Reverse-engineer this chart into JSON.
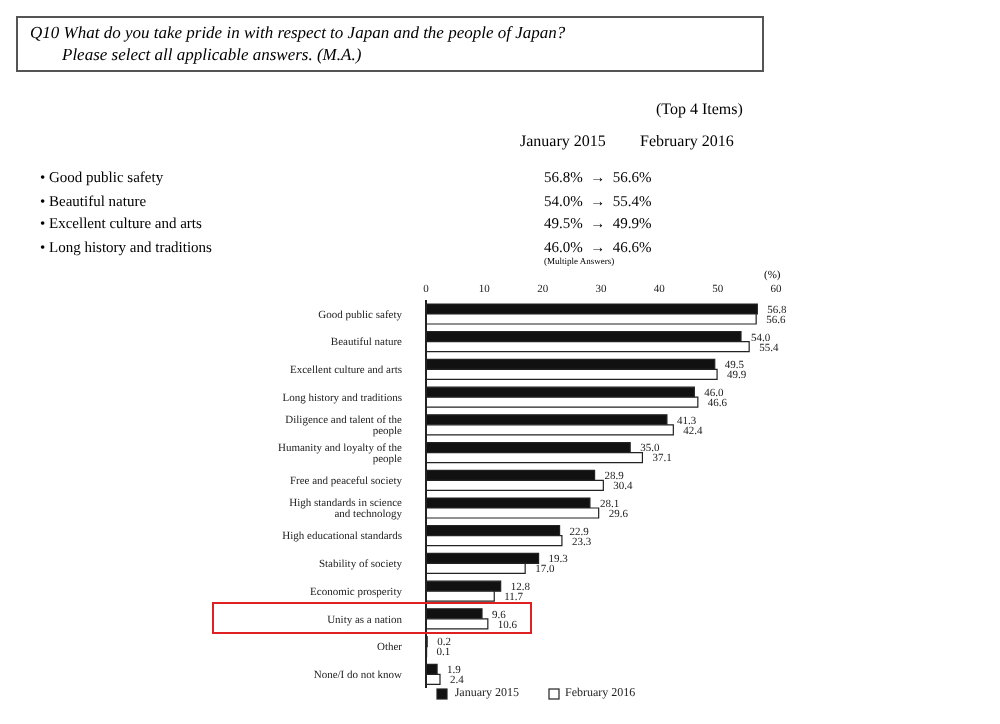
{
  "chart_data": {
    "type": "bar",
    "orientation": "horizontal",
    "title": "Q10 What do you take pride in with respect to Japan and the people of Japan?\nPlease select all applicable answers. (M.A.)",
    "xlabel": "(%)",
    "categories": [
      "Good public safety",
      "Beautiful nature",
      "Excellent culture and arts",
      "Long history and traditions",
      "Diligence and talent of the people",
      "Humanity and loyalty of the people",
      "Free and peaceful society",
      "High standards in science and technology",
      "High educational standards",
      "Stability of society",
      "Economic prosperity",
      "Unity as a nation",
      "Other",
      "None/I do not know"
    ],
    "series": [
      {
        "name": "January 2015",
        "color": "#111111",
        "values": [
          56.8,
          54.0,
          49.5,
          46.0,
          41.3,
          35.0,
          28.9,
          28.1,
          22.9,
          19.3,
          12.8,
          9.6,
          0.2,
          1.9
        ],
        "value_labels": [
          "56.8",
          "54.0",
          "49.5",
          "46.0",
          "41.3",
          "35.0",
          "28.9",
          "28.1",
          "22.9",
          "19.3",
          "12.8",
          "9.6",
          "0.2",
          "1.9"
        ]
      },
      {
        "name": "February 2016",
        "color": "#ffffff",
        "values": [
          56.6,
          55.4,
          49.9,
          46.6,
          42.4,
          37.1,
          30.4,
          29.6,
          23.3,
          17.0,
          11.7,
          10.6,
          0.1,
          2.4
        ],
        "value_labels": [
          "56.6",
          "55.4",
          "49.9",
          "46.6",
          "42.4",
          "37.1",
          "30.4",
          "29.6",
          "23.3",
          "17.0",
          "11.7",
          "10.6",
          "0.1",
          "2.4"
        ]
      }
    ],
    "xlim": [
      0,
      60
    ],
    "xticks": [
      0,
      10,
      20,
      30,
      40,
      50,
      60
    ],
    "legend": "bottom",
    "grid": false,
    "annotations": [
      "(Top 4 Items)",
      "January 2015",
      "February 2016",
      "• Good public safety",
      "56.8%  →  56.6%",
      "• Beautiful nature",
      "54.0%  →  55.4%",
      "• Excellent culture and arts",
      "49.5%  →  49.9%",
      "• Long history and traditions",
      "46.0%  →  46.6%",
      "(Multiple Answers)"
    ]
  }
}
